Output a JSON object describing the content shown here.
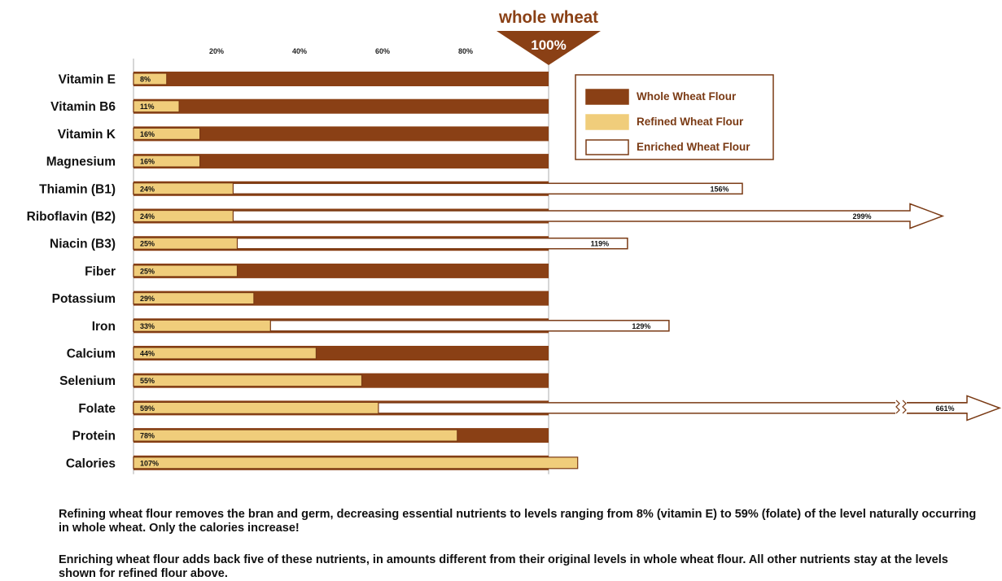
{
  "chart_data": {
    "type": "bar",
    "title": "",
    "xlabel": "",
    "ylabel": "",
    "xlim": [
      0,
      100
    ],
    "x_ticks": [
      {
        "value": 20,
        "label": "20%"
      },
      {
        "value": 40,
        "label": "40%"
      },
      {
        "value": 60,
        "label": "60%"
      },
      {
        "value": 80,
        "label": "80%"
      }
    ],
    "reference_marker": {
      "value": 100,
      "line1": "whole wheat",
      "line2": "100%"
    },
    "categories": [
      "Vitamin E",
      "Vitamin B6",
      "Vitamin K",
      "Magnesium",
      "Thiamin (B1)",
      "Riboflavin (B2)",
      "Niacin (B3)",
      "Fiber",
      "Potassium",
      "Iron",
      "Calcium",
      "Selenium",
      "Folate",
      "Protein",
      "Calories"
    ],
    "series": [
      {
        "name": "Whole Wheat Flour",
        "values": [
          100,
          100,
          100,
          100,
          100,
          100,
          100,
          100,
          100,
          100,
          100,
          100,
          100,
          100,
          100
        ]
      },
      {
        "name": "Refined Wheat Flour",
        "values": [
          8,
          11,
          16,
          16,
          24,
          24,
          25,
          25,
          29,
          33,
          44,
          55,
          59,
          78,
          107
        ],
        "labels": [
          "8%",
          "11%",
          "16%",
          "16%",
          "24%",
          "24%",
          "25%",
          "25%",
          "29%",
          "33%",
          "44%",
          "55%",
          "59%",
          "78%",
          "107%"
        ]
      },
      {
        "name": "Enriched Wheat Flour",
        "values": [
          null,
          null,
          null,
          null,
          156,
          299,
          119,
          null,
          null,
          129,
          null,
          null,
          661,
          null,
          null
        ],
        "labels": [
          "",
          "",
          "",
          "",
          "156%",
          "299%",
          "119%",
          "",
          "",
          "129%",
          "",
          "",
          "661%",
          "",
          ""
        ]
      }
    ],
    "legend_position": "top-right",
    "colors": {
      "whole": "#8a4015",
      "refined": "#f0cd7b",
      "enriched": "#ffffff",
      "outline": "#7a3a14",
      "marker": "#8a4015"
    }
  },
  "notes": [
    "Refining wheat flour removes the bran and germ, decreasing essential nutrients to levels ranging from 8% (vitamin E) to 59% (folate) of the level naturally occurring in whole wheat. Only the calories increase!",
    "Enriching wheat flour adds back five of these nutrients, in amounts different from their original levels in whole wheat flour. All other nutrients stay at the levels shown for refined flour above."
  ]
}
